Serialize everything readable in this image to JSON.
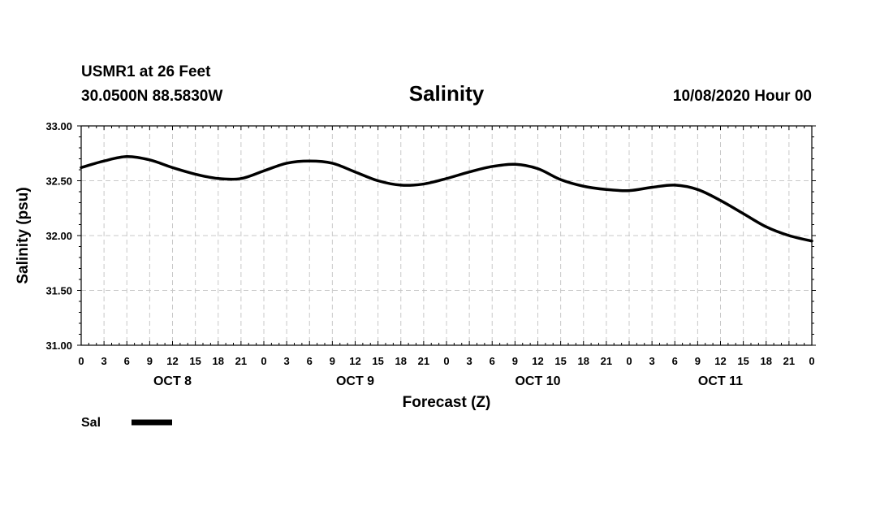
{
  "header": {
    "station": "USMR1 at 26 Feet",
    "location": "30.0500N 88.5830W",
    "timestamp": "10/08/2020 Hour 00"
  },
  "chart_data": {
    "type": "line",
    "title": "Salinity",
    "xlabel": "Forecast (Z)",
    "ylabel": "Salinity (psu)",
    "ylim": [
      31.0,
      33.0
    ],
    "xlim": [
      0,
      96
    ],
    "yticks": [
      "31.00",
      "31.50",
      "32.00",
      "32.50",
      "33.00"
    ],
    "ytick_values": [
      31.0,
      31.5,
      32.0,
      32.5,
      33.0
    ],
    "xtick_labels": [
      "0",
      "3",
      "6",
      "9",
      "12",
      "15",
      "18",
      "21",
      "0",
      "3",
      "6",
      "9",
      "12",
      "15",
      "18",
      "21",
      "0",
      "3",
      "6",
      "9",
      "12",
      "15",
      "18",
      "21",
      "0",
      "3",
      "6",
      "9",
      "12",
      "15",
      "18",
      "21",
      "0"
    ],
    "day_labels": [
      {
        "label": "OCT 8",
        "center_hour": 12
      },
      {
        "label": "OCT 9",
        "center_hour": 36
      },
      {
        "label": "OCT 10",
        "center_hour": 60
      },
      {
        "label": "OCT 11",
        "center_hour": 84
      }
    ],
    "grid": true,
    "legend_position": "bottom-left",
    "series": [
      {
        "name": "Sal",
        "color": "#000000",
        "x": [
          0,
          3,
          6,
          9,
          12,
          15,
          18,
          21,
          24,
          27,
          30,
          33,
          36,
          39,
          42,
          45,
          48,
          51,
          54,
          57,
          60,
          63,
          66,
          69,
          72,
          75,
          78,
          81,
          84,
          87,
          90,
          93,
          96
        ],
        "values": [
          32.62,
          32.68,
          32.72,
          32.69,
          32.62,
          32.56,
          32.52,
          32.52,
          32.59,
          32.66,
          32.68,
          32.66,
          32.58,
          32.5,
          32.46,
          32.47,
          32.52,
          32.58,
          32.63,
          32.65,
          32.61,
          32.51,
          32.45,
          32.42,
          32.41,
          32.44,
          32.46,
          32.42,
          32.32,
          32.2,
          32.08,
          32.0,
          31.95
        ]
      }
    ]
  }
}
